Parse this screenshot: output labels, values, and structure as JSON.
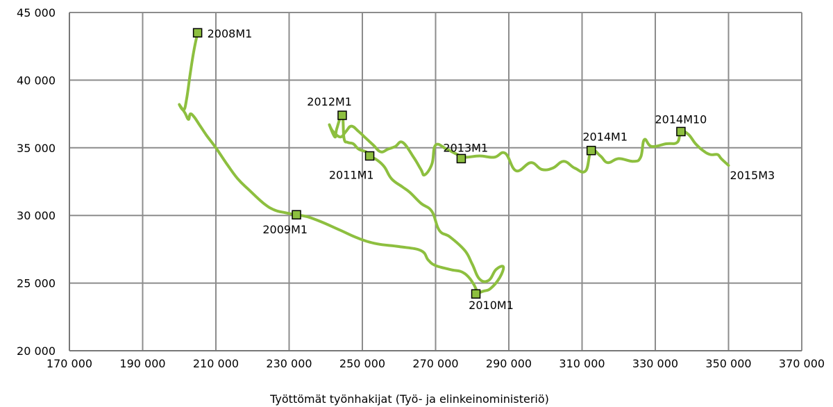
{
  "chart_data": {
    "type": "line",
    "xlabel": "Työttömät työnhakijat (Työ- ja elinkeinoministeriö)",
    "ylabel": "",
    "xlim": [
      170000,
      370000
    ],
    "ylim": [
      20000,
      45000
    ],
    "x_ticks": [
      170000,
      190000,
      210000,
      230000,
      250000,
      270000,
      290000,
      310000,
      330000,
      350000,
      370000
    ],
    "x_tick_labels": [
      "170 000",
      "190 000",
      "210 000",
      "230 000",
      "250 000",
      "270 000",
      "290 000",
      "310 000",
      "330 000",
      "350 000",
      "370 000"
    ],
    "y_ticks": [
      20000,
      25000,
      30000,
      35000,
      40000,
      45000
    ],
    "y_tick_labels": [
      "20 000",
      "25 000",
      "30 000",
      "35 000",
      "40 000",
      "45 000"
    ],
    "grid": true,
    "line_color": "#8dbf3f",
    "marker_color": "#8dbf3f",
    "series": [
      {
        "points": [
          [
            205000,
            43500
          ],
          [
            204000,
            42200
          ],
          [
            203000,
            40500
          ],
          [
            202000,
            38600
          ],
          [
            201200,
            37800
          ],
          [
            200000,
            38200
          ],
          [
            201500,
            37600
          ],
          [
            202500,
            37100
          ],
          [
            203000,
            37500
          ],
          [
            204000,
            37300
          ],
          [
            205500,
            36700
          ],
          [
            207500,
            35900
          ],
          [
            210000,
            35000
          ],
          [
            213000,
            33800
          ],
          [
            216000,
            32700
          ],
          [
            219000,
            31900
          ],
          [
            223000,
            30900
          ],
          [
            226000,
            30400
          ],
          [
            229000,
            30200
          ],
          [
            232000,
            30050
          ],
          [
            235000,
            29900
          ],
          [
            239000,
            29500
          ],
          [
            244000,
            28900
          ],
          [
            249000,
            28300
          ],
          [
            254000,
            27900
          ],
          [
            260000,
            27700
          ],
          [
            266000,
            27400
          ],
          [
            268000,
            26700
          ],
          [
            270000,
            26300
          ],
          [
            274000,
            26000
          ],
          [
            278000,
            25700
          ],
          [
            281000,
            24600
          ],
          [
            280500,
            24200
          ],
          [
            283000,
            24400
          ],
          [
            285000,
            24600
          ],
          [
            287500,
            25400
          ],
          [
            288500,
            26200
          ],
          [
            286500,
            26000
          ],
          [
            284500,
            25200
          ],
          [
            282000,
            25300
          ],
          [
            280000,
            26400
          ],
          [
            278000,
            27400
          ],
          [
            274000,
            28400
          ],
          [
            271000,
            28900
          ],
          [
            269000,
            30300
          ],
          [
            266000,
            30900
          ],
          [
            263000,
            31700
          ],
          [
            261000,
            32100
          ],
          [
            258000,
            32700
          ],
          [
            256000,
            33600
          ],
          [
            254000,
            34100
          ],
          [
            252000,
            34400
          ],
          [
            251000,
            34700
          ],
          [
            249000,
            34900
          ],
          [
            247500,
            35300
          ],
          [
            246000,
            35400
          ],
          [
            245000,
            35700
          ],
          [
            244500,
            37400
          ],
          [
            243000,
            36400
          ],
          [
            242500,
            35800
          ],
          [
            241000,
            36700
          ],
          [
            242000,
            36200
          ],
          [
            244000,
            35800
          ],
          [
            245500,
            36200
          ],
          [
            247000,
            36600
          ],
          [
            249000,
            36200
          ],
          [
            251000,
            35700
          ],
          [
            253000,
            35200
          ],
          [
            255000,
            34700
          ],
          [
            257000,
            34900
          ],
          [
            259000,
            35100
          ],
          [
            261000,
            35400
          ],
          [
            264000,
            34300
          ],
          [
            266000,
            33400
          ],
          [
            267000,
            33000
          ],
          [
            269000,
            33800
          ],
          [
            270000,
            35200
          ],
          [
            273000,
            34900
          ],
          [
            276000,
            34500
          ],
          [
            278000,
            34300
          ],
          [
            282000,
            34400
          ],
          [
            286000,
            34300
          ],
          [
            289000,
            34600
          ],
          [
            292000,
            33300
          ],
          [
            296000,
            33900
          ],
          [
            299000,
            33400
          ],
          [
            302000,
            33500
          ],
          [
            305000,
            34000
          ],
          [
            308000,
            33500
          ],
          [
            311000,
            33300
          ],
          [
            312500,
            34800
          ],
          [
            315000,
            34400
          ],
          [
            317000,
            33900
          ],
          [
            320000,
            34200
          ],
          [
            324000,
            34000
          ],
          [
            326000,
            34300
          ],
          [
            327000,
            35600
          ],
          [
            329000,
            35100
          ],
          [
            333000,
            35300
          ],
          [
            336000,
            35400
          ],
          [
            337000,
            36200
          ],
          [
            339000,
            36000
          ],
          [
            341000,
            35300
          ],
          [
            343000,
            34800
          ],
          [
            345000,
            34500
          ],
          [
            347000,
            34500
          ],
          [
            348000,
            34200
          ],
          [
            350000,
            33700
          ]
        ]
      }
    ],
    "annotations": [
      {
        "text": "2008M1",
        "x": 205000,
        "y": 43500,
        "anchor": "start"
      },
      {
        "text": "2009M1",
        "x": 232000,
        "y": 30050,
        "anchor": "end"
      },
      {
        "text": "2010M1",
        "x": 281000,
        "y": 24200,
        "anchor": "middle"
      },
      {
        "text": "2011M1",
        "x": 252000,
        "y": 34400,
        "anchor": "end"
      },
      {
        "text": "2012M1",
        "x": 244500,
        "y": 37400,
        "anchor": "end"
      },
      {
        "text": "2013M1",
        "x": 277000,
        "y": 34200,
        "anchor": "start"
      },
      {
        "text": "2014M1",
        "x": 312500,
        "y": 34800,
        "anchor": "middle"
      },
      {
        "text": "2014M10",
        "x": 337000,
        "y": 36200,
        "anchor": "middle"
      },
      {
        "text": "2015M3",
        "x": 350000,
        "y": 33700,
        "anchor": "start"
      }
    ]
  }
}
